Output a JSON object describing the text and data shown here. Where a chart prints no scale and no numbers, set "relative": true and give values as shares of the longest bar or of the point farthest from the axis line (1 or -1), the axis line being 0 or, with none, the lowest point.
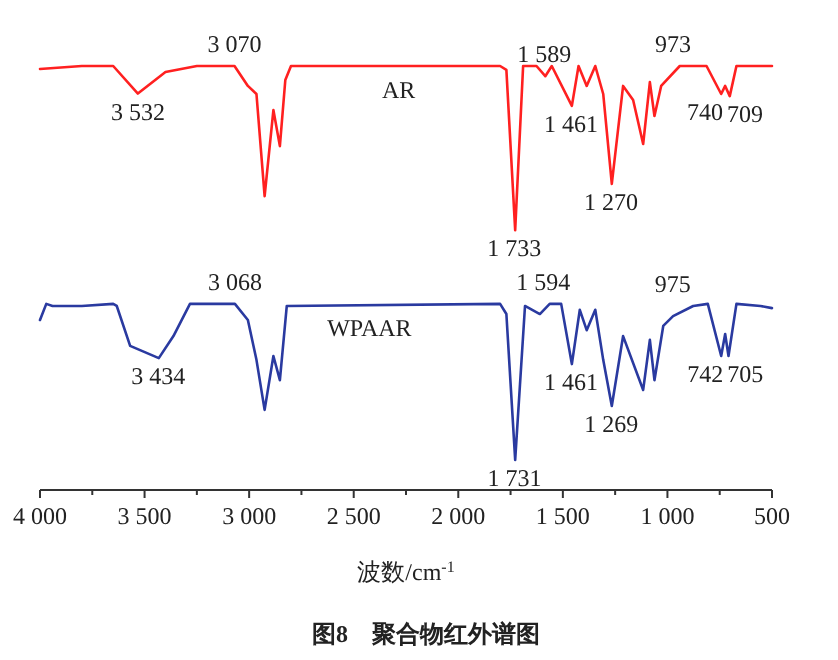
{
  "chart_data": {
    "type": "line",
    "relative": true,
    "title": "图8　聚合物红外谱图",
    "xlabel": "波数/cm$^{-1}$",
    "xlim": [
      4000,
      500
    ],
    "xticks": [
      {
        "value": 4000,
        "label": "4 000"
      },
      {
        "value": 3750,
        "label": null
      },
      {
        "value": 3500,
        "label": "3 500"
      },
      {
        "value": 3250,
        "label": null
      },
      {
        "value": 3000,
        "label": "3 000"
      },
      {
        "value": 2750,
        "label": null
      },
      {
        "value": 2500,
        "label": "2 500"
      },
      {
        "value": 2250,
        "label": null
      },
      {
        "value": 2000,
        "label": "2 000"
      },
      {
        "value": 1750,
        "label": null
      },
      {
        "value": 1500,
        "label": "1 500"
      },
      {
        "value": 1250,
        "label": null
      },
      {
        "value": 1000,
        "label": "1 000"
      },
      {
        "value": 750,
        "label": null
      },
      {
        "value": 500,
        "label": "500"
      }
    ],
    "series": [
      {
        "name": "AR",
        "color": "#ff2020",
        "x": [
          4000,
          3800,
          3650,
          3532,
          3400,
          3250,
          3070,
          3006,
          2965,
          2926,
          2884,
          2853,
          2827,
          2800,
          1800,
          1770,
          1728,
          1690,
          1626,
          1584,
          1553,
          1457,
          1425,
          1386,
          1345,
          1307,
          1266,
          1212,
          1164,
          1116,
          1084,
          1062,
          1030,
          941,
          813,
          743,
          724,
          702,
          670,
          500
        ],
        "values": [
          0.993,
          1,
          1,
          0.935,
          0.986,
          1,
          1,
          0.953,
          0.934,
          0.693,
          0.896,
          0.811,
          0.967,
          1,
          1,
          0.991,
          0.613,
          1,
          1,
          0.976,
          1,
          0.906,
          1,
          0.953,
          1,
          0.934,
          0.722,
          0.953,
          0.92,
          0.816,
          0.962,
          0.882,
          0.953,
          1,
          1,
          0.934,
          0.953,
          0.929,
          1,
          1
        ]
      },
      {
        "name": "WPAAR",
        "color": "#2a3aa0",
        "x": [
          4000,
          3970,
          3940,
          3800,
          3650,
          3633,
          3569,
          3432,
          3362,
          3283,
          3068,
          3006,
          2965,
          2926,
          2884,
          2853,
          2820,
          1800,
          1770,
          1728,
          1681,
          1610,
          1563,
          1508,
          1457,
          1419,
          1386,
          1345,
          1307,
          1266,
          1212,
          1116,
          1084,
          1062,
          1020,
          973,
          877,
          807,
          743,
          724,
          708,
          670,
          555,
          500
        ],
        "values": [
          0.401,
          0.439,
          0.434,
          0.434,
          0.439,
          0.434,
          0.34,
          0.311,
          0.363,
          0.439,
          0.439,
          0.401,
          0.307,
          0.189,
          0.316,
          0.259,
          0.434,
          0.439,
          0.415,
          0.071,
          0.434,
          0.415,
          0.439,
          0.439,
          0.297,
          0.425,
          0.377,
          0.425,
          0.307,
          0.198,
          0.363,
          0.236,
          0.354,
          0.259,
          0.387,
          0.41,
          0.434,
          0.439,
          0.316,
          0.368,
          0.316,
          0.439,
          0.434,
          0.429
        ]
      }
    ],
    "annotations": [
      {
        "text": "3 532",
        "x": 3532,
        "y": 0.935
      },
      {
        "text": "3 070",
        "x": 3070,
        "y": 1
      },
      {
        "text": "1 589",
        "x": 1589,
        "y": 0.976
      },
      {
        "text": "1 733",
        "x": 1733,
        "y": 0.613
      },
      {
        "text": "1 461",
        "x": 1461,
        "y": 0.906
      },
      {
        "text": "1 270",
        "x": 1270,
        "y": 0.722
      },
      {
        "text": "973",
        "x": 973,
        "y": 1
      },
      {
        "text": "740",
        "x": 740,
        "y": 0.934
      },
      {
        "text": "709",
        "x": 709,
        "y": 0.929
      },
      {
        "text": "3 434",
        "x": 3434,
        "y": 0.311
      },
      {
        "text": "3 068",
        "x": 3068,
        "y": 0.439
      },
      {
        "text": "1 594",
        "x": 1594,
        "y": 0.439
      },
      {
        "text": "1 731",
        "x": 1731,
        "y": 0.071
      },
      {
        "text": "1 461",
        "x": 1461,
        "y": 0.297
      },
      {
        "text": "1 269",
        "x": 1269,
        "y": 0.198
      },
      {
        "text": "975",
        "x": 975,
        "y": 0.434
      },
      {
        "text": "742",
        "x": 742,
        "y": 0.316
      },
      {
        "text": "705",
        "x": 705,
        "y": 0.316
      }
    ]
  }
}
